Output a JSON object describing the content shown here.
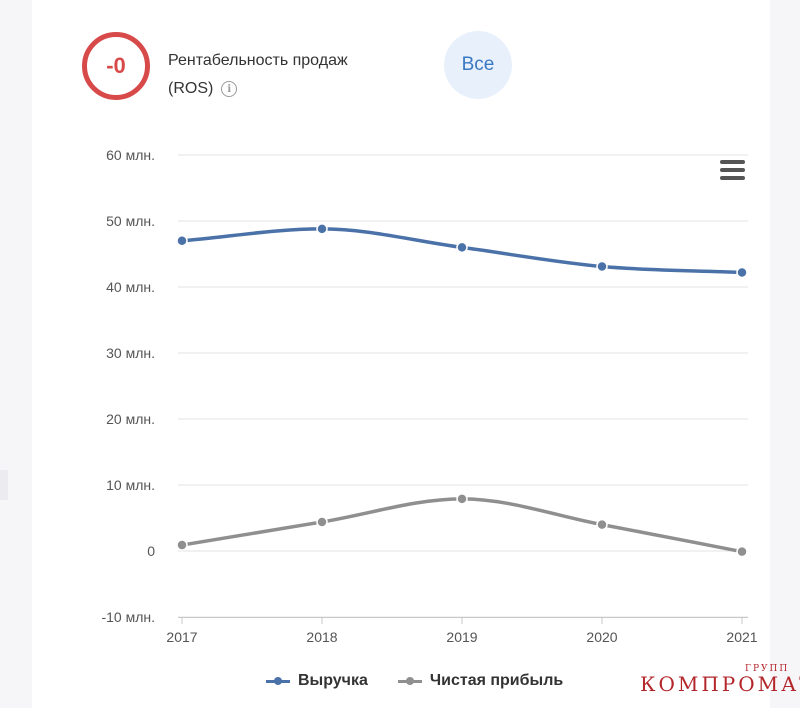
{
  "header": {
    "ros_value": "-0",
    "ros_title": "Рентабельность продаж",
    "ros_subtitle": "(ROS)",
    "info_icon": "info-icon",
    "all_button_label": "Все"
  },
  "toolbar": {
    "menu_icon": "hamburger-menu-icon"
  },
  "watermark": {
    "main": "КОМПРОМАТ",
    "small": "ГРУПП"
  },
  "colors": {
    "revenue": "#4a72a8",
    "profit": "#8f8f8f",
    "badge": "#d84a4a",
    "button_bg": "#e8f1fb",
    "button_text": "#3a78c2",
    "grid": "#e3e3e3",
    "watermark": "#b3262b"
  },
  "chart_data": {
    "type": "line",
    "title": "",
    "xlabel": "",
    "ylabel": "",
    "categories": [
      "2017",
      "2018",
      "2019",
      "2020",
      "2021"
    ],
    "series": [
      {
        "name": "Выручка",
        "values": [
          47.0,
          48.8,
          46.0,
          43.1,
          42.2
        ]
      },
      {
        "name": "Чистая прибыль",
        "values": [
          0.9,
          4.4,
          7.9,
          4.0,
          -0.1
        ]
      }
    ],
    "ylim": [
      -10,
      60
    ],
    "y_ticks": [
      60,
      50,
      40,
      30,
      20,
      10,
      0,
      -10
    ],
    "y_tick_labels": [
      "60 млн.",
      "50 млн.",
      "40 млн.",
      "30 млн.",
      "20 млн.",
      "10 млн.",
      "0",
      "-10 млн."
    ],
    "grid": true,
    "legend_position": "bottom"
  }
}
